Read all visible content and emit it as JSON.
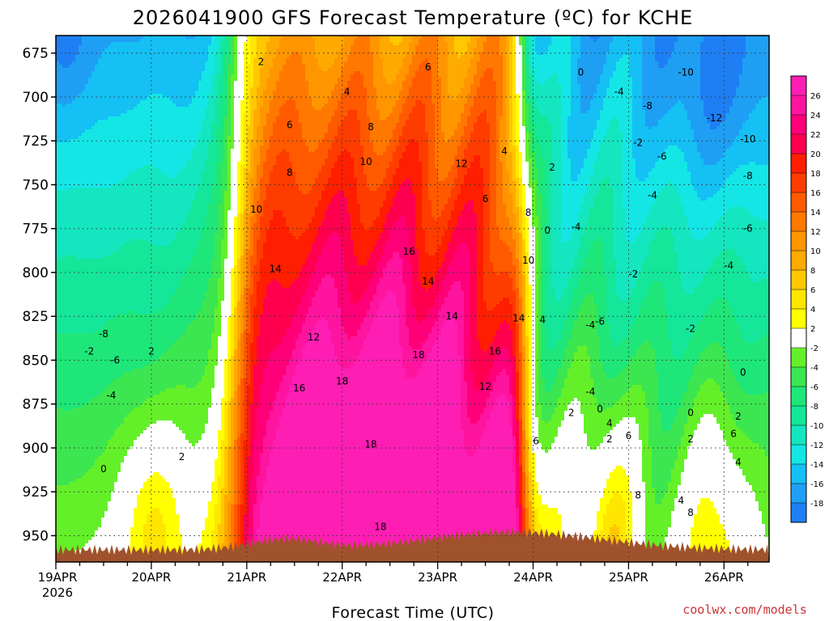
{
  "chart_data": {
    "type": "heatmap",
    "title": "2026041900 GFS Forecast Temperature (ºC) for KCHE",
    "xlabel": "Forecast Time (UTC)",
    "credit": "coolwx.com/models",
    "x_ticks": [
      "19APR",
      "20APR",
      "21APR",
      "22APR",
      "23APR",
      "24APR",
      "25APR",
      "26APR"
    ],
    "x_year": "2026",
    "y_ticks": [
      675,
      700,
      725,
      750,
      775,
      800,
      825,
      850,
      875,
      900,
      925,
      950
    ],
    "ylim": [
      965,
      665
    ],
    "xlim_days": [
      0,
      7.4
    ],
    "grid": true,
    "colorbar": {
      "levels": [
        -18,
        -16,
        -14,
        -12,
        -10,
        -8,
        -6,
        -4,
        -2,
        2,
        4,
        6,
        8,
        10,
        12,
        14,
        16,
        18,
        20,
        22,
        24,
        26
      ],
      "colors": [
        "#1e7ff4",
        "#1e9ff4",
        "#14c0f4",
        "#14e6e6",
        "#14e6c0",
        "#14e69a",
        "#1ee678",
        "#3ce650",
        "#64f028",
        "#ffffff",
        "#ffff00",
        "#ffe600",
        "#ffc800",
        "#ffaa00",
        "#ff9600",
        "#ff7800",
        "#ff5a00",
        "#ff3c00",
        "#ff1e00",
        "#ff0050",
        "#ff0078",
        "#ff14a0",
        "#ff1eb4"
      ]
    },
    "terrain_color": "#a0522d",
    "contour_labels": [
      {
        "x": 0.5,
        "y": 835,
        "label": "-8"
      },
      {
        "x": 0.35,
        "y": 845,
        "label": "-2"
      },
      {
        "x": 0.62,
        "y": 850,
        "label": "-6"
      },
      {
        "x": 0.58,
        "y": 870,
        "label": "-4"
      },
      {
        "x": 1.0,
        "y": 845,
        "label": "2"
      },
      {
        "x": 0.5,
        "y": 912,
        "label": "0"
      },
      {
        "x": 1.32,
        "y": 905,
        "label": "2"
      },
      {
        "x": 2.15,
        "y": 680,
        "label": "2"
      },
      {
        "x": 3.05,
        "y": 697,
        "label": "4"
      },
      {
        "x": 2.45,
        "y": 716,
        "label": "6"
      },
      {
        "x": 2.45,
        "y": 743,
        "label": "8"
      },
      {
        "x": 2.1,
        "y": 764,
        "label": "10"
      },
      {
        "x": 2.3,
        "y": 798,
        "label": "14"
      },
      {
        "x": 2.7,
        "y": 837,
        "label": "12"
      },
      {
        "x": 2.55,
        "y": 866,
        "label": "16"
      },
      {
        "x": 3.3,
        "y": 717,
        "label": "8"
      },
      {
        "x": 3.25,
        "y": 737,
        "label": "10"
      },
      {
        "x": 3.9,
        "y": 683,
        "label": "6"
      },
      {
        "x": 4.25,
        "y": 738,
        "label": "12"
      },
      {
        "x": 3.7,
        "y": 788,
        "label": "16"
      },
      {
        "x": 3.9,
        "y": 805,
        "label": "14"
      },
      {
        "x": 3.0,
        "y": 862,
        "label": "18"
      },
      {
        "x": 3.8,
        "y": 847,
        "label": "18"
      },
      {
        "x": 3.3,
        "y": 898,
        "label": "18"
      },
      {
        "x": 4.7,
        "y": 731,
        "label": "4"
      },
      {
        "x": 5.2,
        "y": 740,
        "label": "2"
      },
      {
        "x": 4.5,
        "y": 758,
        "label": "6"
      },
      {
        "x": 4.95,
        "y": 766,
        "label": "8"
      },
      {
        "x": 5.15,
        "y": 776,
        "label": "0"
      },
      {
        "x": 4.95,
        "y": 793,
        "label": "10"
      },
      {
        "x": 4.15,
        "y": 825,
        "label": "14"
      },
      {
        "x": 4.6,
        "y": 845,
        "label": "16"
      },
      {
        "x": 4.85,
        "y": 826,
        "label": "14"
      },
      {
        "x": 5.1,
        "y": 827,
        "label": "4"
      },
      {
        "x": 4.5,
        "y": 865,
        "label": "12"
      },
      {
        "x": 5.45,
        "y": 774,
        "label": "-4"
      },
      {
        "x": 5.7,
        "y": 828,
        "label": "-6"
      },
      {
        "x": 5.6,
        "y": 830,
        "label": "-4"
      },
      {
        "x": 5.6,
        "y": 868,
        "label": "-4"
      },
      {
        "x": 5.4,
        "y": 880,
        "label": "2"
      },
      {
        "x": 5.7,
        "y": 878,
        "label": "0"
      },
      {
        "x": 5.8,
        "y": 886,
        "label": "4"
      },
      {
        "x": 5.8,
        "y": 895,
        "label": "2"
      },
      {
        "x": 6.0,
        "y": 893,
        "label": "6"
      },
      {
        "x": 6.1,
        "y": 927,
        "label": "8"
      },
      {
        "x": 5.03,
        "y": 896,
        "label": "6"
      },
      {
        "x": 5.5,
        "y": 686,
        "label": "0"
      },
      {
        "x": 5.9,
        "y": 697,
        "label": "-4"
      },
      {
        "x": 6.1,
        "y": 726,
        "label": "-2"
      },
      {
        "x": 6.2,
        "y": 705,
        "label": "-8"
      },
      {
        "x": 6.25,
        "y": 756,
        "label": "-4"
      },
      {
        "x": 6.35,
        "y": 734,
        "label": "-6"
      },
      {
        "x": 6.05,
        "y": 801,
        "label": "-2"
      },
      {
        "x": 6.6,
        "y": 686,
        "label": "-10"
      },
      {
        "x": 6.9,
        "y": 712,
        "label": "-12"
      },
      {
        "x": 7.25,
        "y": 724,
        "label": "-10"
      },
      {
        "x": 7.25,
        "y": 745,
        "label": "-8"
      },
      {
        "x": 7.25,
        "y": 775,
        "label": "-6"
      },
      {
        "x": 7.05,
        "y": 796,
        "label": "-4"
      },
      {
        "x": 6.65,
        "y": 832,
        "label": "-2"
      },
      {
        "x": 7.2,
        "y": 857,
        "label": "0"
      },
      {
        "x": 6.65,
        "y": 880,
        "label": "0"
      },
      {
        "x": 6.65,
        "y": 895,
        "label": "2"
      },
      {
        "x": 7.1,
        "y": 892,
        "label": "6"
      },
      {
        "x": 7.15,
        "y": 908,
        "label": "4"
      },
      {
        "x": 7.15,
        "y": 882,
        "label": "2"
      },
      {
        "x": 6.55,
        "y": 930,
        "label": "4"
      },
      {
        "x": 6.65,
        "y": 937,
        "label": "8"
      },
      {
        "x": 3.4,
        "y": 945,
        "label": "18"
      }
    ]
  }
}
